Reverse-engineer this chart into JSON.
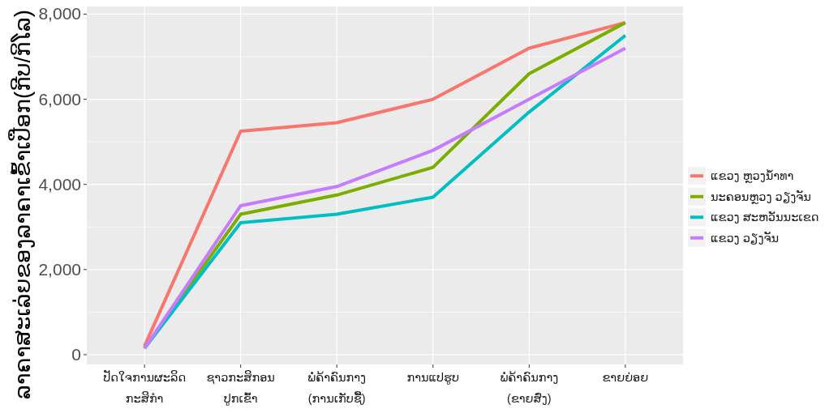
{
  "chart_data": {
    "type": "line",
    "categories": [
      "ປັດໃຈການຜະລິດ\nກະສິກຳ",
      "ຊາວກະສິກອນ\nປູກເຂົ້າ",
      "ພໍ່ຄ້າຄົນກາງ\n(ການເກັບຊື້)",
      "ການແປຮູບ",
      "ພໍ່ຄ້າຄົນກາງ\n(ຂາຍສົ່ງ)",
      "ຂາຍຍ່ອຍ"
    ],
    "series": [
      {
        "name": "ແຂວງ ຫຼວງນ້ຳທາ",
        "color": "#f8766d",
        "values": [
          200,
          5250,
          5450,
          6000,
          7200,
          7800
        ]
      },
      {
        "name": "ນະຄອນຫຼວງ ວຽງຈັນ",
        "color": "#7cae00",
        "values": [
          150,
          3300,
          3750,
          4400,
          6600,
          7800
        ]
      },
      {
        "name": "ແຂວງ ສະຫວັນນະເຂດ",
        "color": "#00bfc4",
        "values": [
          150,
          3100,
          3300,
          3700,
          5700,
          7500
        ]
      },
      {
        "name": "ແຂວງ ວຽງຈັນ",
        "color": "#c77cff",
        "values": [
          150,
          3500,
          3950,
          4800,
          6000,
          7200
        ]
      }
    ],
    "ylabel": "ລາຄາສະເລ່ຍຂອງລາຄາເຂົ້າເປືອກ(ກີບ/ກິໂລ)",
    "ylim": [
      -230,
      8180
    ],
    "yticks": [
      {
        "value": 0,
        "label": "0"
      },
      {
        "value": 2000,
        "label": "2,000"
      },
      {
        "value": 4000,
        "label": "4,000"
      },
      {
        "value": 6000,
        "label": "6,000"
      },
      {
        "value": 8000,
        "label": "8,000"
      }
    ],
    "grid": true,
    "legend": "right"
  }
}
